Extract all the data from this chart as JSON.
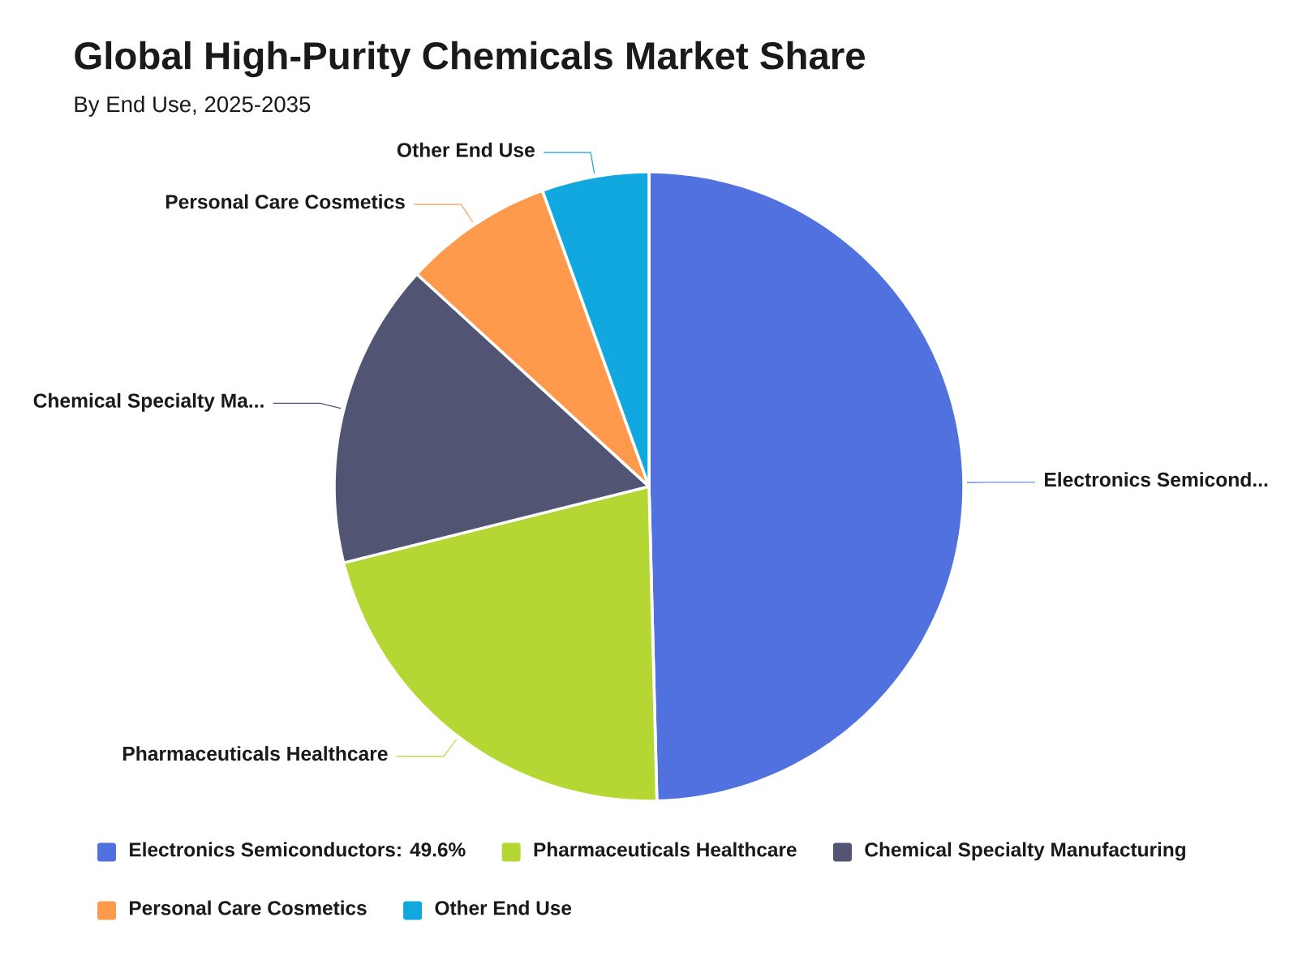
{
  "chart_data": {
    "type": "pie",
    "title": "Global High-Purity Chemicals Market Share",
    "subtitle": "By End Use, 2025-2035",
    "categories": [
      "Electronics Semiconductors",
      "Pharmaceuticals Healthcare",
      "Chemical Specialty Manufacturing",
      "Personal Care Cosmetics",
      "Other End Use"
    ],
    "values": [
      49.6,
      21.5,
      15.7,
      7.7,
      5.5
    ],
    "colors": [
      "#5171de",
      "#b5d733",
      "#525473",
      "#ff9a4d",
      "#10a8df"
    ],
    "value_labels": [
      ": 49.6%",
      null,
      null,
      null,
      null
    ],
    "annotations": [
      "Electronics Semicond...",
      "Pharmaceuticals Healthcare",
      "Chemical Specialty Ma...",
      "Personal Care Cosmetics",
      "Other End Use"
    ],
    "legend": "bottom"
  }
}
